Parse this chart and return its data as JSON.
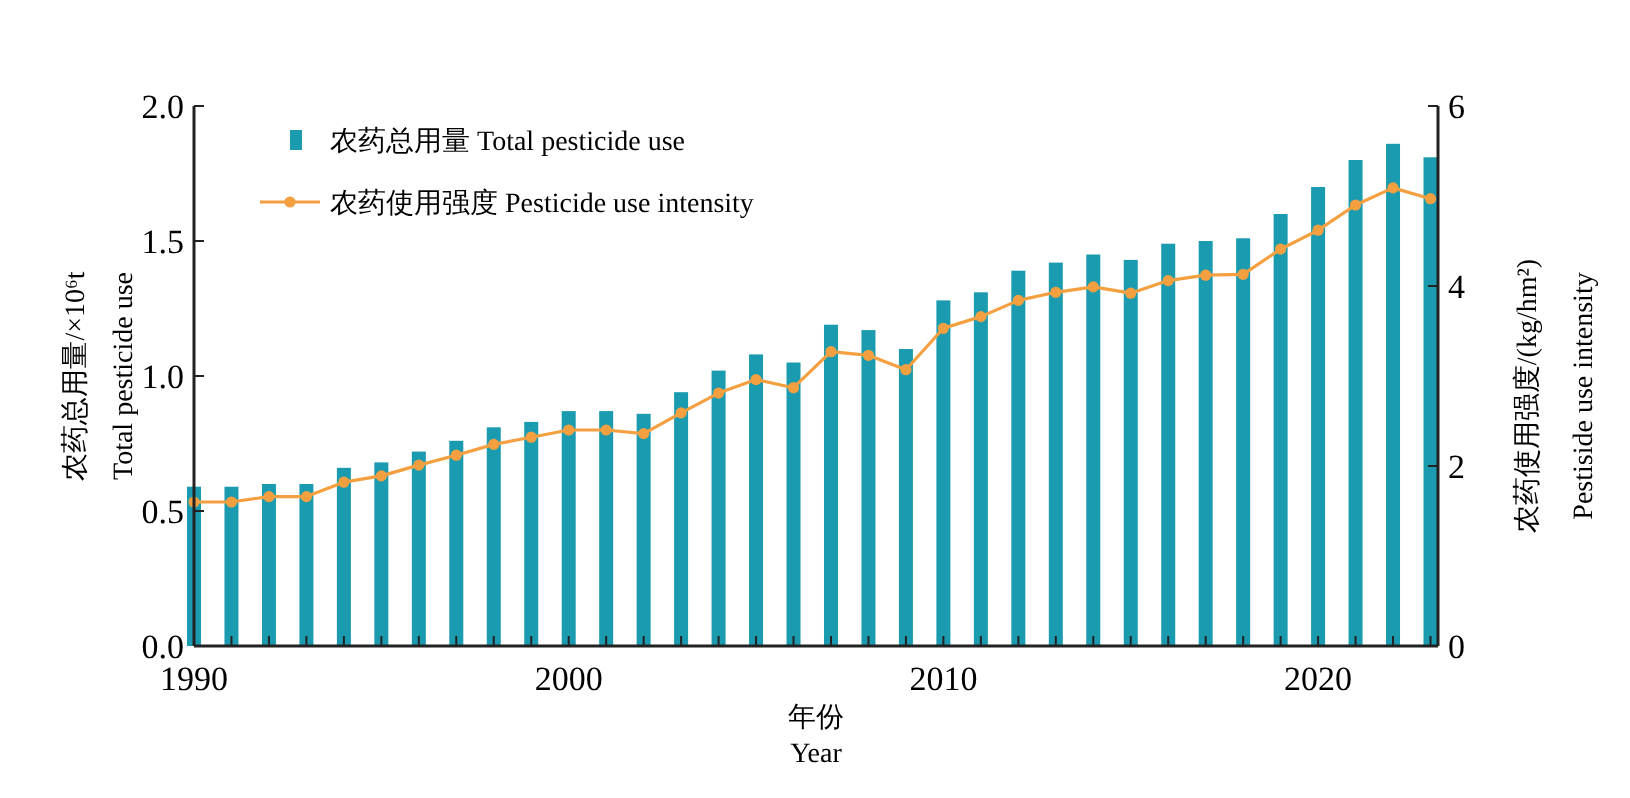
{
  "chart_data": {
    "type": "bar",
    "xlabel": "年份\nYear",
    "ylabel": "农药总用量/×10⁶t\nTotal pesticide use",
    "y2label": "农药使用强度/(kg/hm²)\nPestiside use intensity",
    "x": [
      1990,
      1991,
      1992,
      1993,
      1994,
      1995,
      1996,
      1997,
      1998,
      1999,
      2000,
      2001,
      2002,
      2003,
      2004,
      2005,
      2006,
      2007,
      2008,
      2009,
      2010,
      2011,
      2012,
      2013,
      2014,
      2015,
      2016,
      2017,
      2018,
      2019,
      2020,
      2021,
      2022,
      2023
    ],
    "xlim": [
      1990,
      2023.2
    ],
    "xticks": [
      {
        "value": 1990,
        "label": "1990"
      },
      {
        "value": 1991,
        "label": null
      },
      {
        "value": 1992,
        "label": null
      },
      {
        "value": 1993,
        "label": null
      },
      {
        "value": 1994,
        "label": null
      },
      {
        "value": 1995,
        "label": null
      },
      {
        "value": 1996,
        "label": null
      },
      {
        "value": 1997,
        "label": null
      },
      {
        "value": 1998,
        "label": null
      },
      {
        "value": 1999,
        "label": null
      },
      {
        "value": 2000,
        "label": "2000"
      },
      {
        "value": 2001,
        "label": null
      },
      {
        "value": 2002,
        "label": null
      },
      {
        "value": 2003,
        "label": null
      },
      {
        "value": 2004,
        "label": null
      },
      {
        "value": 2005,
        "label": null
      },
      {
        "value": 2006,
        "label": null
      },
      {
        "value": 2007,
        "label": null
      },
      {
        "value": 2008,
        "label": null
      },
      {
        "value": 2009,
        "label": null
      },
      {
        "value": 2010,
        "label": "2010"
      },
      {
        "value": 2011,
        "label": null
      },
      {
        "value": 2012,
        "label": null
      },
      {
        "value": 2013,
        "label": null
      },
      {
        "value": 2014,
        "label": null
      },
      {
        "value": 2015,
        "label": null
      },
      {
        "value": 2016,
        "label": null
      },
      {
        "value": 2017,
        "label": null
      },
      {
        "value": 2018,
        "label": null
      },
      {
        "value": 2019,
        "label": null
      },
      {
        "value": 2020,
        "label": "2020"
      },
      {
        "value": 2021,
        "label": null
      },
      {
        "value": 2022,
        "label": null
      },
      {
        "value": 2023,
        "label": null
      }
    ],
    "ylim": [
      0,
      2
    ],
    "yticks": [
      {
        "value": 0,
        "label": "0.0"
      },
      {
        "value": 0.5,
        "label": "0.5"
      },
      {
        "value": 1,
        "label": "1.0"
      },
      {
        "value": 1.5,
        "label": "1.5"
      },
      {
        "value": 2,
        "label": "2.0"
      }
    ],
    "y2lim": [
      0,
      6
    ],
    "y2ticks": [
      0,
      2,
      4,
      6
    ],
    "legend": "top left",
    "grid": false,
    "marker": "circle",
    "line_style": "solid",
    "series": [
      {
        "name": "农药总用量  Total pesticide use",
        "color": "#1a9bb0",
        "values": [
          0.59,
          0.59,
          0.6,
          0.6,
          0.66,
          0.68,
          0.72,
          0.76,
          0.81,
          0.83,
          0.87,
          0.87,
          0.86,
          0.94,
          1.02,
          1.08,
          1.05,
          1.19,
          1.17,
          1.1,
          1.28,
          1.31,
          1.39,
          1.42,
          1.45,
          1.43,
          1.49,
          1.5,
          1.51,
          1.6,
          1.7,
          1.8,
          1.86,
          1.81
        ]
      },
      {
        "name": "农药使用强度  Pesticide use intensity",
        "type": "line",
        "axis": "y2",
        "color": "#f5a040",
        "values": [
          1.6,
          1.6,
          1.66,
          1.66,
          1.82,
          1.89,
          2.01,
          2.12,
          2.24,
          2.32,
          2.4,
          2.4,
          2.36,
          2.59,
          2.81,
          2.96,
          2.87,
          3.27,
          3.23,
          3.07,
          3.53,
          3.66,
          3.84,
          3.93,
          3.99,
          3.92,
          4.06,
          4.12,
          4.13,
          4.41,
          4.62,
          4.9,
          5.09,
          4.97
        ]
      }
    ]
  }
}
